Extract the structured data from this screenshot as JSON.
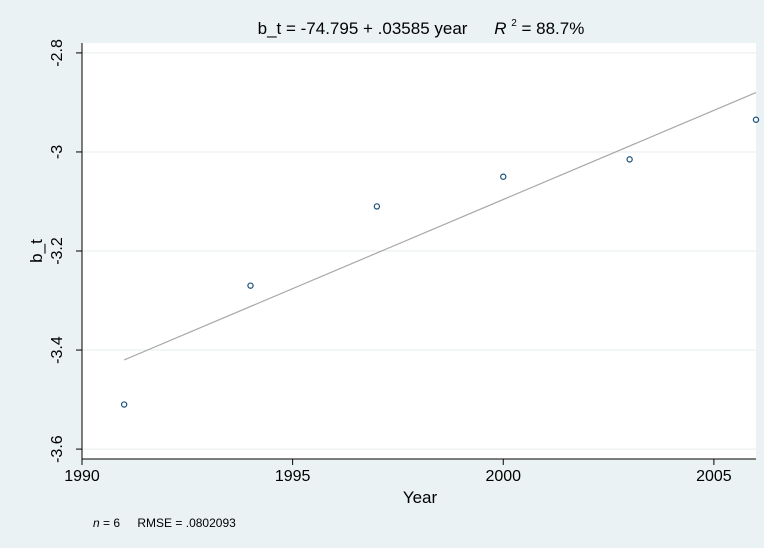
{
  "chart_data": {
    "type": "scatter",
    "title": "b_t = -74.795 + .03585 year",
    "r2": {
      "symbol": "R",
      "superscript": "2",
      "value_text": " = 88.7%"
    },
    "xlabel": "Year",
    "ylabel": "b_t",
    "xlim": [
      1990,
      2006
    ],
    "ylim": [
      -3.62,
      -2.78
    ],
    "x_ticks": [
      1990,
      1995,
      2000,
      2005
    ],
    "y_ticks": [
      -2.8,
      -3,
      -3.2,
      -3.4,
      -3.6
    ],
    "x_tick_labels": [
      "1990",
      "1995",
      "2000",
      "2005"
    ],
    "y_tick_labels": [
      "-2.8",
      "-3",
      "-3.2",
      "-3.4",
      "-3.6"
    ],
    "grid": true,
    "series": [
      {
        "type": "scatter",
        "x": [
          1991,
          1994,
          1997,
          2000,
          2003,
          2006
        ],
        "y": [
          -3.51,
          -3.27,
          -3.11,
          -3.05,
          -3.015,
          -2.935
        ]
      },
      {
        "type": "line",
        "x": [
          1991,
          2006
        ],
        "y": [
          -3.42,
          -2.88
        ]
      }
    ],
    "note": {
      "n_label": "n",
      "n_value": " = 6",
      "rmse_text": "RMSE = .0802093"
    },
    "colors": {
      "background": "#eaf2f3",
      "plot_area": "#ffffff",
      "grid": "#e6eeee",
      "markers": "#1a4f7a",
      "fit_line": "#a8a8a8",
      "axis": "#000000"
    }
  }
}
